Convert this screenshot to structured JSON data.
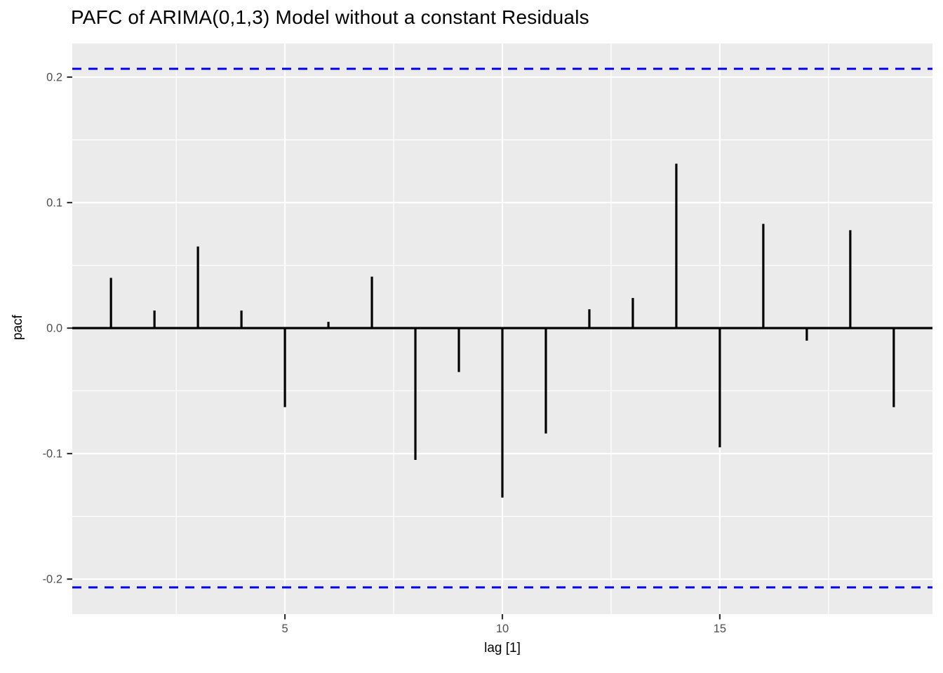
{
  "header": {
    "title": "PAFC of ARIMA(0,1,3) Model without a constant Residuals"
  },
  "chart_data": {
    "type": "bar",
    "subtype": "pacf-lollipop",
    "title": "PAFC of ARIMA(0,1,3) Model without a constant Residuals",
    "xlabel": "lag [1]",
    "ylabel": "pacf",
    "x": [
      1,
      2,
      3,
      4,
      5,
      6,
      7,
      8,
      9,
      10,
      11,
      12,
      13,
      14,
      15,
      16,
      17,
      18,
      19
    ],
    "values": [
      0.04,
      0.014,
      0.065,
      0.014,
      -0.063,
      0.005,
      0.041,
      -0.105,
      -0.035,
      -0.135,
      -0.084,
      0.015,
      0.024,
      0.131,
      -0.095,
      0.083,
      -0.01,
      0.078,
      -0.063
    ],
    "confidence_bounds": {
      "upper": 0.2066,
      "lower": -0.2066,
      "line_style": "dashed"
    },
    "x_ticks": {
      "major": [
        5,
        10,
        15
      ],
      "labels": [
        "5",
        "10",
        "15"
      ],
      "minor": [
        2.5,
        7.5,
        12.5,
        17.5
      ]
    },
    "y_ticks": {
      "major": [
        0.2,
        0.1,
        0.0,
        -0.1,
        -0.2
      ],
      "labels": [
        "0.2",
        "0.1",
        "0.0",
        "-0.1",
        "-0.2"
      ],
      "minor": [
        0.15,
        0.05,
        -0.05,
        -0.15
      ]
    },
    "xlim": [
      0.11,
      19.89
    ],
    "ylim": [
      -0.2279,
      0.2268
    ],
    "grid": "major+minor",
    "legend": "none",
    "colors": {
      "panel_bg": "#EBEBEB",
      "grid": "#FFFFFF",
      "bar": "#000000",
      "zero_line": "#000000",
      "ci_line": "#0202F0",
      "tick_mark": "#333333",
      "tick_label": "#4D4D4D",
      "axis_title": "#000000",
      "title": "#000000"
    }
  }
}
